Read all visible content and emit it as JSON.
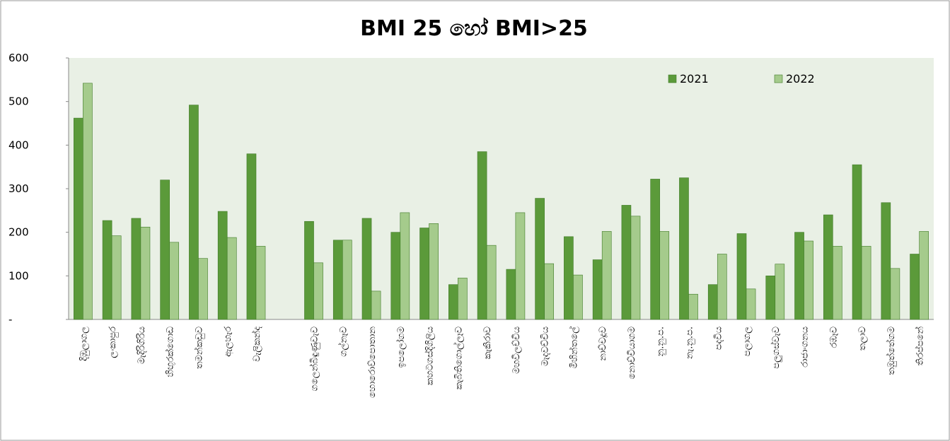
{
  "chart_data": {
    "type": "bar",
    "title": "BMI 25 හෝ  BMI>25",
    "categories": [
      "දිඹුලාගල",
      "ලංකාපුර",
      "මැදිරිගිරිය",
      "හිඟුරක්ගොඩ",
      "තමන්කඩුව",
      "ඇලහැර",
      "වැලිකන්ද",
      null,
      "ගලෙන්බිඳුණුවැව",
      "ගල්නෑව",
      "හොරොව්පොතාන",
      "ඉපලෝගම",
      "කහටගස්දිගිලිය",
      "කැබිතිගොල්ලෑව",
      "කැකිරාව",
      "මහවිලච්චිය",
      "මැදවච්චිය",
      "මිහින්තලේ",
      "නාච්චදූව",
      "නොච්චියාගම",
      "නු.නු.ප.",
      "නැ.නු.ප.",
      "පදවිය",
      "පලාගල",
      "පලුගස්වැව",
      "රාජාංගනය",
      "රඹෑව",
      "තලාව",
      "තඹුත්තේගම",
      "තිරප්පනේ"
    ],
    "series": [
      {
        "name": "2021",
        "color": "#5b9a3a",
        "values": [
          462,
          227,
          232,
          320,
          492,
          248,
          380,
          null,
          225,
          182,
          232,
          200,
          210,
          80,
          385,
          115,
          278,
          190,
          137,
          262,
          322,
          325,
          80,
          197,
          100,
          200,
          240,
          355,
          268,
          150
        ]
      },
      {
        "name": "2022",
        "color": "#a5cb8c",
        "values": [
          542,
          192,
          212,
          177,
          140,
          188,
          168,
          null,
          130,
          182,
          65,
          245,
          220,
          95,
          170,
          245,
          128,
          102,
          202,
          237,
          202,
          58,
          150,
          70,
          127,
          180,
          168,
          168,
          117,
          202
        ]
      }
    ],
    "ylim": [
      0,
      600
    ],
    "yticks": [
      {
        "value": 0,
        "label": "-"
      },
      100,
      200,
      300,
      400,
      500,
      600
    ],
    "legend": "top-right"
  }
}
